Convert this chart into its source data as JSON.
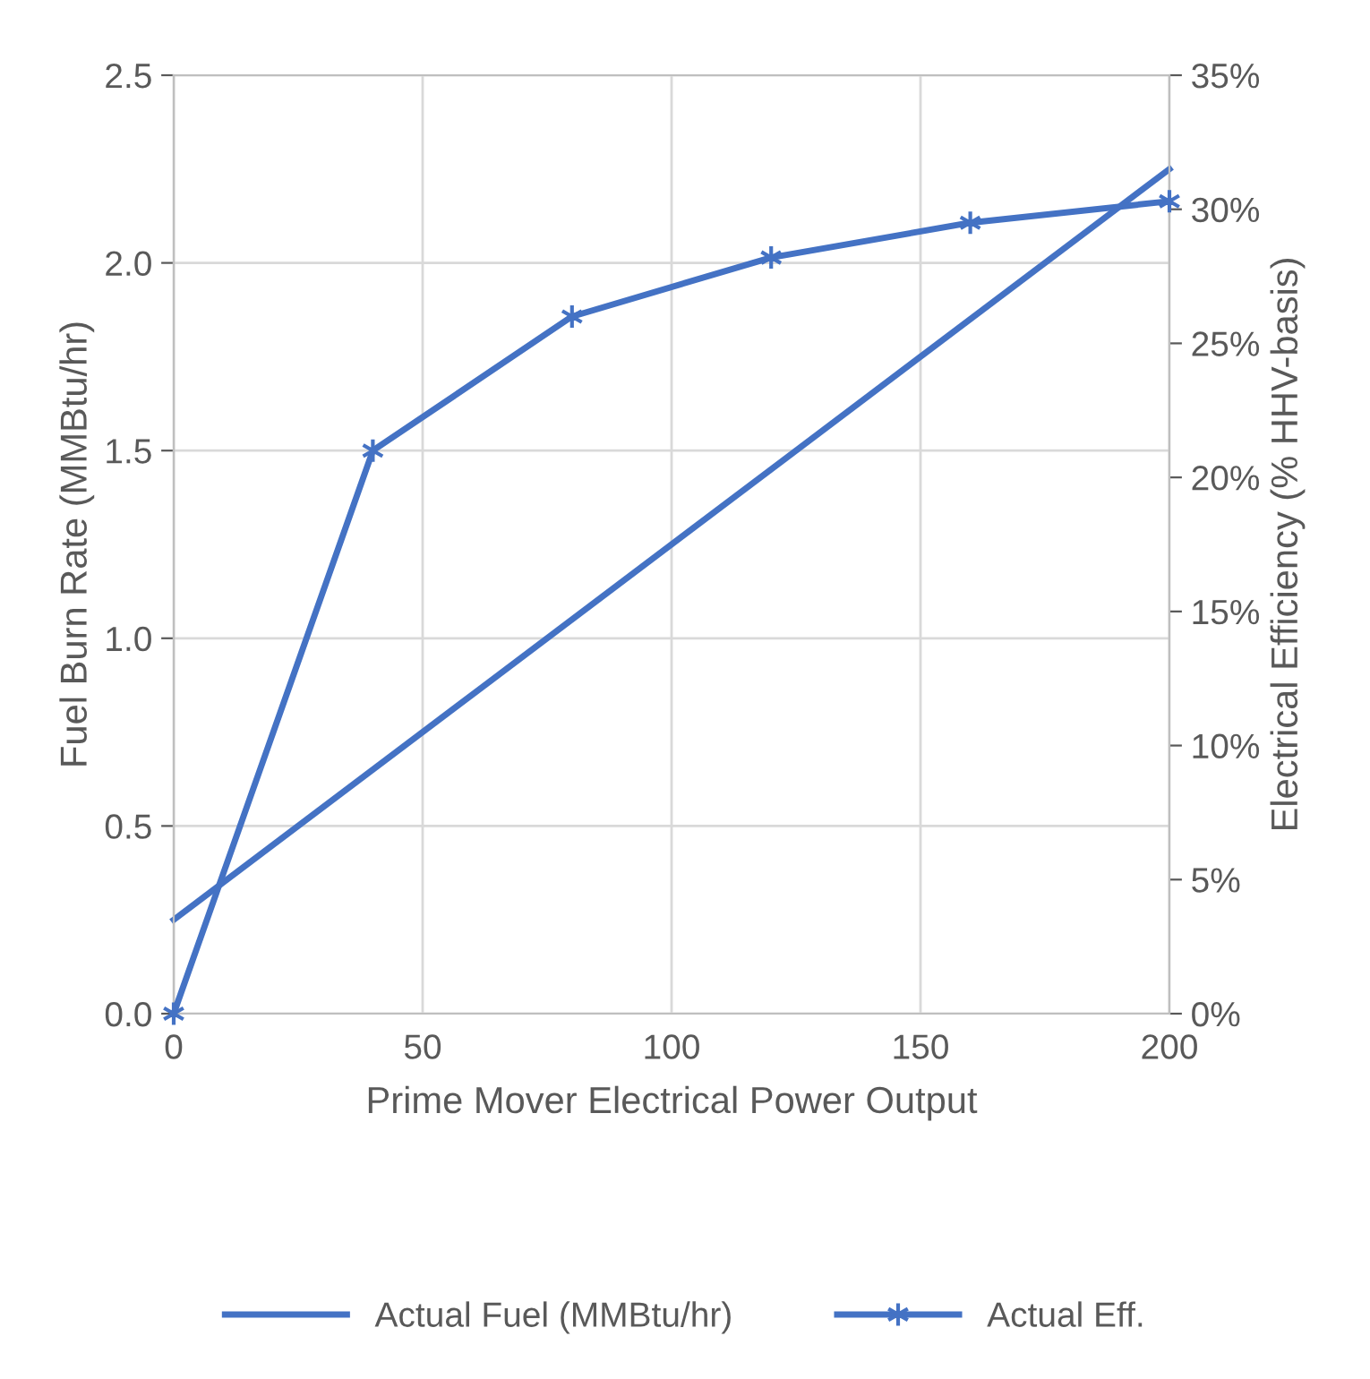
{
  "chart_data": {
    "type": "line",
    "xlabel": "Prime Mover Electrical Power Output",
    "ylabel": "Fuel Burn Rate (MMBtu/hr)",
    "y2label": "Electrical Efficiency (% HHV-basis)",
    "x": [
      0,
      40,
      80,
      120,
      160,
      200
    ],
    "series": [
      {
        "name": "Actual Fuel (MMBtu/hr)",
        "color": "#4472c4",
        "x": [
          0,
          200
        ],
        "values": [
          0.25,
          2.25
        ],
        "marker": "none"
      },
      {
        "name": "Actual Eff.",
        "color": "#4472c4",
        "axis": "y2",
        "values": [
          0,
          21,
          26,
          28.2,
          29.5,
          30.3
        ],
        "marker": "cross"
      }
    ],
    "xlim": [
      0,
      200
    ],
    "xticks": [
      0,
      50,
      100,
      150,
      200
    ],
    "ylim": [
      0,
      2.5
    ],
    "yticks": [
      {
        "value": 0,
        "label": "0.0"
      },
      {
        "value": 0.5,
        "label": "0.5"
      },
      {
        "value": 1,
        "label": "1.0"
      },
      {
        "value": 1.5,
        "label": "1.5"
      },
      {
        "value": 2,
        "label": "2.0"
      },
      {
        "value": 2.5,
        "label": "2.5"
      }
    ],
    "y2lim": [
      0,
      35
    ],
    "y2ticks": [
      {
        "value": 0,
        "label": "0%"
      },
      {
        "value": 5,
        "label": "5%"
      },
      {
        "value": 10,
        "label": "10%"
      },
      {
        "value": 15,
        "label": "15%"
      },
      {
        "value": 20,
        "label": "20%"
      },
      {
        "value": 25,
        "label": "25%"
      },
      {
        "value": 30,
        "label": "30%"
      },
      {
        "value": 35,
        "label": "35%"
      }
    ],
    "grid": true,
    "legend": "bottom",
    "line_style": "solid"
  }
}
